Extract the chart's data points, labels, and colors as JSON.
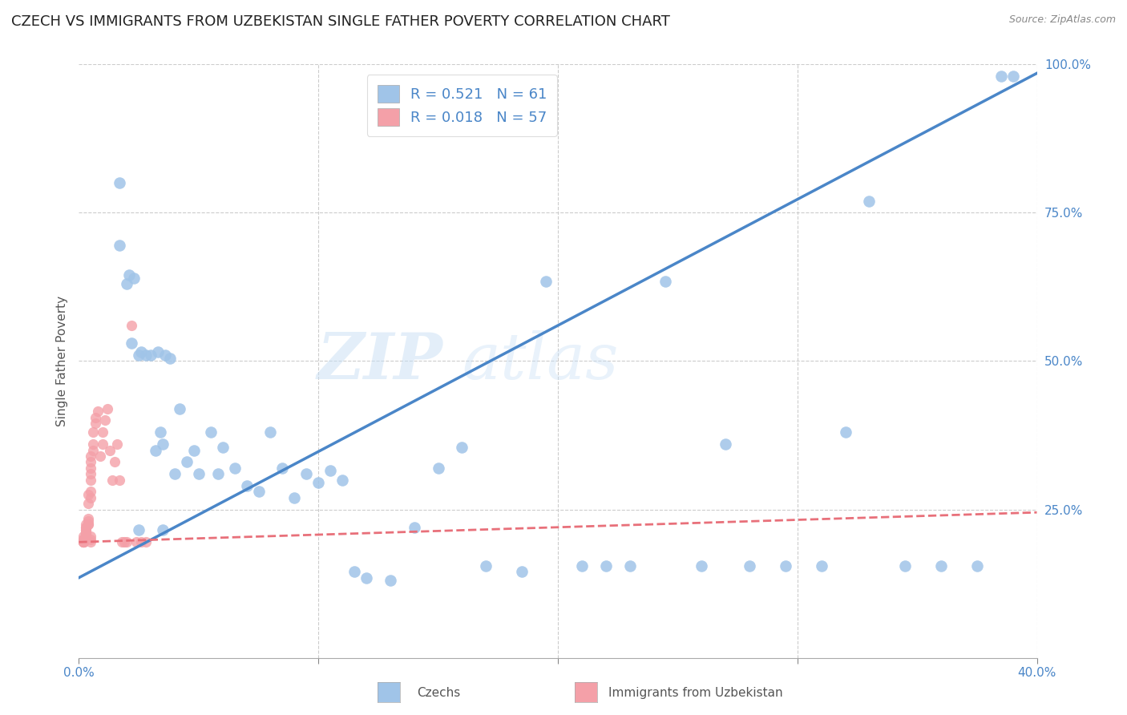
{
  "title": "CZECH VS IMMIGRANTS FROM UZBEKISTAN SINGLE FATHER POVERTY CORRELATION CHART",
  "source": "Source: ZipAtlas.com",
  "ylabel": "Single Father Poverty",
  "xlim": [
    0.0,
    0.4
  ],
  "ylim": [
    0.0,
    1.0
  ],
  "xtick_positions": [
    0.0,
    0.1,
    0.2,
    0.3,
    0.4
  ],
  "xtick_labels": [
    "0.0%",
    "",
    "",
    "",
    "40.0%"
  ],
  "ytick_labels_right": [
    "100.0%",
    "75.0%",
    "50.0%",
    "25.0%"
  ],
  "yticks_right": [
    1.0,
    0.75,
    0.5,
    0.25
  ],
  "watermark": "ZIPatlas",
  "czech_color": "#a0c4e8",
  "uzbek_color": "#f4a0a8",
  "czech_line_color": "#4a86c8",
  "uzbek_line_color": "#e8707a",
  "legend_czech_R": "0.521",
  "legend_czech_N": "61",
  "legend_uzbek_R": "0.018",
  "legend_uzbek_N": "57",
  "legend_label_czech": "Czechs",
  "legend_label_uzbek": "Immigrants from Uzbekistan",
  "background_color": "#ffffff",
  "grid_color": "#cccccc",
  "axis_color": "#4a86c8",
  "title_fontsize": 13,
  "czech_line_x": [
    0.0,
    0.4
  ],
  "czech_line_y": [
    0.135,
    0.985
  ],
  "uzbek_line_x": [
    0.0,
    0.4
  ],
  "uzbek_line_y": [
    0.195,
    0.245
  ],
  "czech_scatter_x": [
    0.025,
    0.035,
    0.017,
    0.017,
    0.02,
    0.021,
    0.022,
    0.023,
    0.025,
    0.026,
    0.028,
    0.03,
    0.032,
    0.033,
    0.034,
    0.035,
    0.036,
    0.038,
    0.04,
    0.042,
    0.045,
    0.048,
    0.05,
    0.055,
    0.058,
    0.06,
    0.065,
    0.07,
    0.075,
    0.08,
    0.085,
    0.09,
    0.095,
    0.1,
    0.105,
    0.11,
    0.115,
    0.12,
    0.13,
    0.14,
    0.15,
    0.16,
    0.17,
    0.185,
    0.195,
    0.21,
    0.22,
    0.23,
    0.245,
    0.26,
    0.27,
    0.28,
    0.295,
    0.31,
    0.32,
    0.33,
    0.345,
    0.36,
    0.375,
    0.385,
    0.39
  ],
  "czech_scatter_y": [
    0.215,
    0.215,
    0.8,
    0.695,
    0.63,
    0.645,
    0.53,
    0.64,
    0.51,
    0.515,
    0.51,
    0.51,
    0.35,
    0.515,
    0.38,
    0.36,
    0.51,
    0.505,
    0.31,
    0.42,
    0.33,
    0.35,
    0.31,
    0.38,
    0.31,
    0.355,
    0.32,
    0.29,
    0.28,
    0.38,
    0.32,
    0.27,
    0.31,
    0.295,
    0.315,
    0.3,
    0.145,
    0.135,
    0.13,
    0.22,
    0.32,
    0.355,
    0.155,
    0.145,
    0.635,
    0.155,
    0.155,
    0.155,
    0.635,
    0.155,
    0.36,
    0.155,
    0.155,
    0.155,
    0.38,
    0.77,
    0.155,
    0.155,
    0.155,
    0.98,
    0.98
  ],
  "uzbek_scatter_x": [
    0.002,
    0.002,
    0.002,
    0.002,
    0.002,
    0.002,
    0.002,
    0.002,
    0.003,
    0.003,
    0.003,
    0.003,
    0.003,
    0.003,
    0.003,
    0.003,
    0.003,
    0.003,
    0.004,
    0.004,
    0.004,
    0.004,
    0.004,
    0.004,
    0.005,
    0.005,
    0.005,
    0.005,
    0.005,
    0.005,
    0.005,
    0.005,
    0.005,
    0.005,
    0.006,
    0.006,
    0.006,
    0.007,
    0.007,
    0.008,
    0.009,
    0.01,
    0.01,
    0.011,
    0.012,
    0.013,
    0.014,
    0.015,
    0.016,
    0.017,
    0.018,
    0.019,
    0.02,
    0.022,
    0.024,
    0.026,
    0.028
  ],
  "uzbek_scatter_y": [
    0.195,
    0.195,
    0.195,
    0.195,
    0.195,
    0.2,
    0.2,
    0.205,
    0.205,
    0.205,
    0.21,
    0.21,
    0.21,
    0.215,
    0.215,
    0.22,
    0.22,
    0.225,
    0.225,
    0.225,
    0.23,
    0.235,
    0.26,
    0.275,
    0.195,
    0.2,
    0.205,
    0.27,
    0.28,
    0.3,
    0.31,
    0.32,
    0.33,
    0.34,
    0.35,
    0.36,
    0.38,
    0.395,
    0.405,
    0.415,
    0.34,
    0.36,
    0.38,
    0.4,
    0.42,
    0.35,
    0.3,
    0.33,
    0.36,
    0.3,
    0.195,
    0.195,
    0.195,
    0.56,
    0.195,
    0.195,
    0.195
  ]
}
